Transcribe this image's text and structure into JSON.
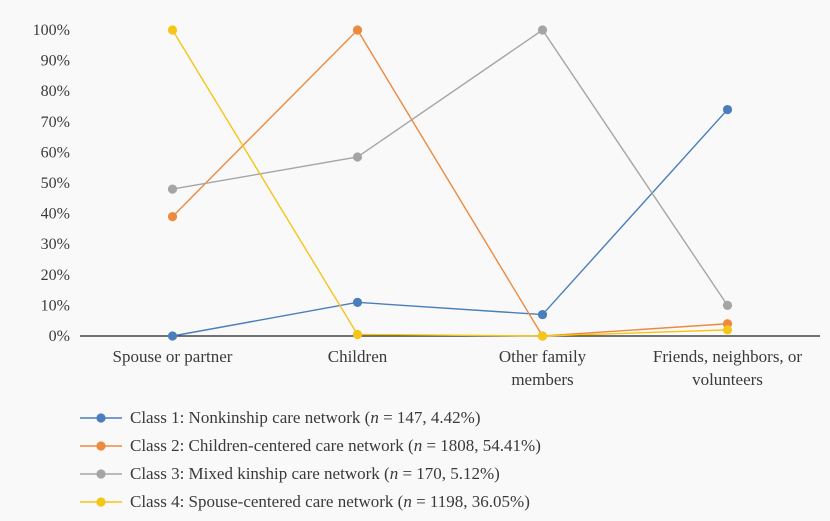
{
  "chart_data": {
    "type": "line",
    "categories": [
      [
        "Spouse or partner"
      ],
      [
        "Children"
      ],
      [
        "Other family",
        "members"
      ],
      [
        "Friends, neighbors, or",
        "volunteers"
      ]
    ],
    "y_tick_labels": [
      "0%",
      "10%",
      "20%",
      "30%",
      "40%",
      "50%",
      "60%",
      "70%",
      "80%",
      "90%",
      "100%"
    ],
    "ylim": [
      0,
      100
    ],
    "grid": false,
    "legend_position": "bottom",
    "series": [
      {
        "name": "Class 1: Nonkinship care network",
        "legend_prefix": "Class 1: Nonkinship care network (",
        "legend_n": "n",
        "legend_suffix": " = 147, 4.42%)",
        "color": "#4a7ebb",
        "values": [
          0,
          11,
          7,
          74
        ]
      },
      {
        "name": "Class 2: Children-centered care network",
        "legend_prefix": "Class 2: Children-centered care network (",
        "legend_n": "n",
        "legend_suffix": " = 1808, 54.41%)",
        "color": "#ed8a3f",
        "values": [
          39,
          100,
          0,
          4
        ]
      },
      {
        "name": "Class 3: Mixed kinship care network",
        "legend_prefix": "Class 3: Mixed kinship care network (",
        "legend_n": "n",
        "legend_suffix": " = 170, 5.12%)",
        "color": "#a5a5a5",
        "values": [
          48,
          58.5,
          100,
          10
        ]
      },
      {
        "name": "Class 4: Spouse-centered care network",
        "legend_prefix": "Class 4: Spouse-centered care network (",
        "legend_n": "n",
        "legend_suffix": " = 1198, 36.05%)",
        "color": "#f5c518",
        "values": [
          100,
          0.5,
          0,
          2
        ]
      }
    ]
  }
}
